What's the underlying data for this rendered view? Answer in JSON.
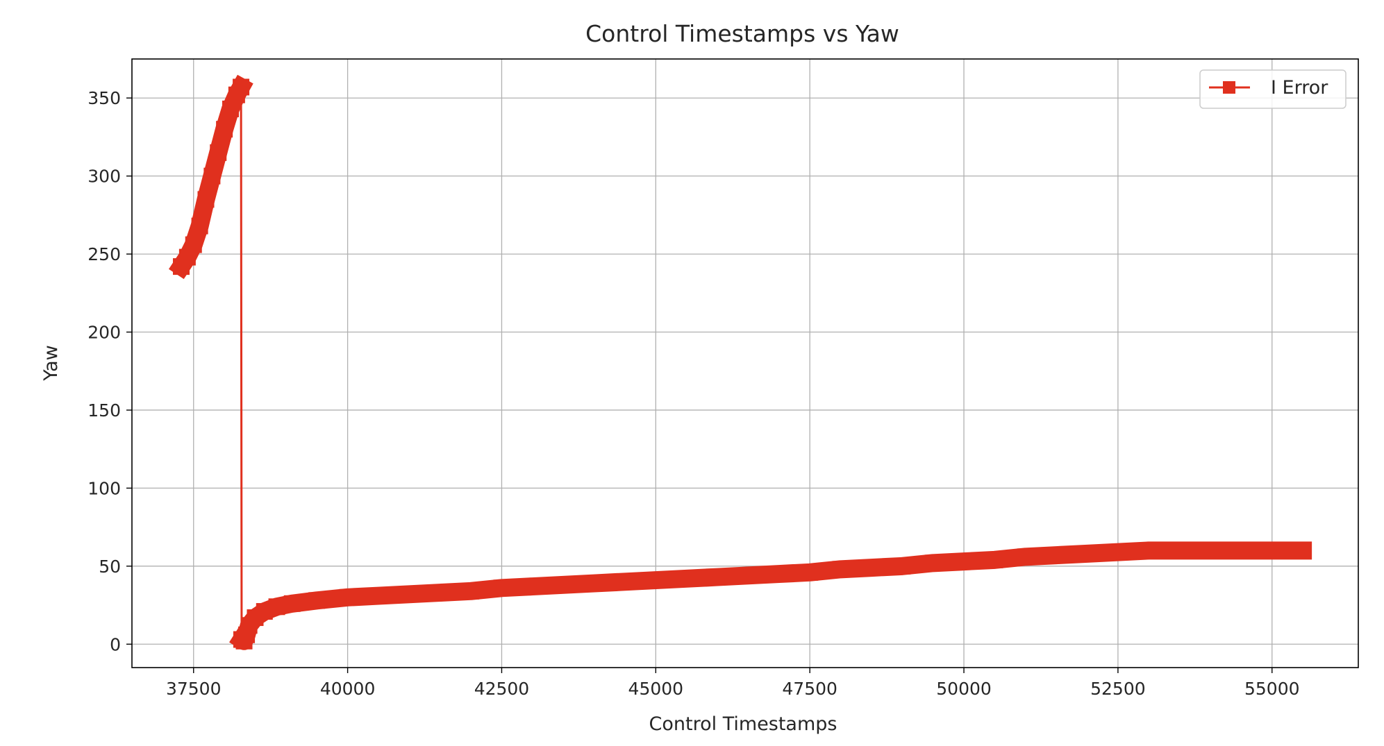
{
  "chart_data": {
    "type": "line",
    "title": "Control Timestamps vs Yaw",
    "xlabel": "Control Timestamps",
    "ylabel": "Yaw",
    "xlim": [
      36500,
      56400
    ],
    "ylim": [
      -15,
      375
    ],
    "xticks": [
      37500,
      40000,
      42500,
      45000,
      47500,
      50000,
      52500,
      55000
    ],
    "yticks": [
      0,
      50,
      100,
      150,
      200,
      250,
      300,
      350
    ],
    "grid": true,
    "legend_position": "top-right",
    "series": [
      {
        "name": "I Error",
        "color": "#e0301e",
        "marker": "square",
        "points": [
          [
            37300,
            242
          ],
          [
            37400,
            248
          ],
          [
            37500,
            256
          ],
          [
            37600,
            268
          ],
          [
            37700,
            285
          ],
          [
            37800,
            300
          ],
          [
            37900,
            315
          ],
          [
            38000,
            330
          ],
          [
            38100,
            343
          ],
          [
            38200,
            352
          ],
          [
            38270,
            357
          ],
          [
            38280,
            3
          ],
          [
            38320,
            2
          ],
          [
            38360,
            6
          ],
          [
            38400,
            12
          ],
          [
            38500,
            17
          ],
          [
            38650,
            21
          ],
          [
            38850,
            24
          ],
          [
            39100,
            26
          ],
          [
            39500,
            28
          ],
          [
            40000,
            30
          ],
          [
            40500,
            31
          ],
          [
            41000,
            32
          ],
          [
            41500,
            33
          ],
          [
            42000,
            34
          ],
          [
            42500,
            36
          ],
          [
            43000,
            37
          ],
          [
            43500,
            38
          ],
          [
            44000,
            39
          ],
          [
            44500,
            40
          ],
          [
            45000,
            41
          ],
          [
            45500,
            42
          ],
          [
            46000,
            43
          ],
          [
            46500,
            44
          ],
          [
            47000,
            45
          ],
          [
            47500,
            46
          ],
          [
            48000,
            48
          ],
          [
            48500,
            49
          ],
          [
            49000,
            50
          ],
          [
            49500,
            52
          ],
          [
            50000,
            53
          ],
          [
            50500,
            54
          ],
          [
            51000,
            56
          ],
          [
            51500,
            57
          ],
          [
            52000,
            58
          ],
          [
            52500,
            59
          ],
          [
            53000,
            60
          ],
          [
            53500,
            60
          ],
          [
            54000,
            60
          ],
          [
            54500,
            60
          ],
          [
            55000,
            60
          ],
          [
            55500,
            60
          ]
        ]
      }
    ]
  }
}
